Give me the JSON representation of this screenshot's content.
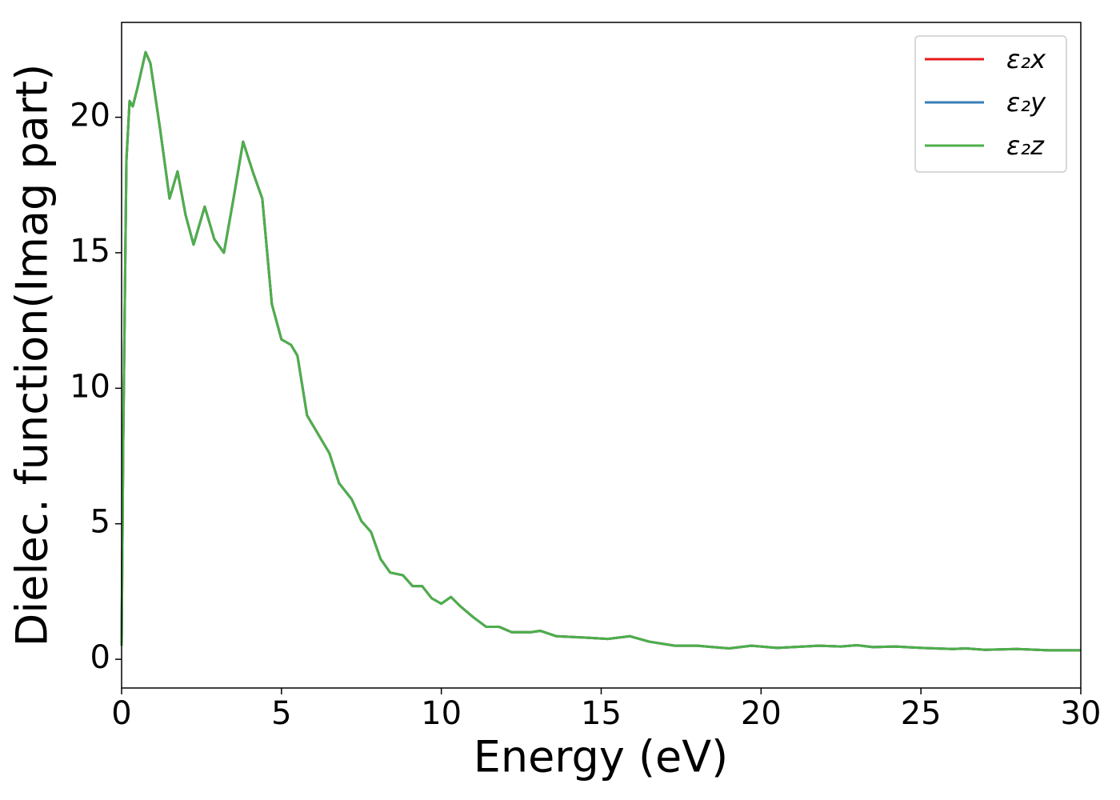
{
  "chart_data": {
    "type": "line",
    "xlabel": "Energy (eV)",
    "ylabel": "Dielec. function(Imag part)",
    "x": [
      0,
      0.05,
      0.15,
      0.25,
      0.35,
      0.5,
      0.75,
      0.9,
      1.2,
      1.5,
      1.75,
      2.0,
      2.25,
      2.6,
      2.9,
      3.2,
      3.5,
      3.8,
      4.1,
      4.4,
      4.7,
      5.0,
      5.3,
      5.5,
      5.8,
      6.1,
      6.5,
      6.8,
      7.2,
      7.5,
      7.8,
      8.1,
      8.4,
      8.8,
      9.1,
      9.4,
      9.7,
      10.0,
      10.3,
      10.6,
      11.0,
      11.4,
      11.8,
      12.2,
      12.8,
      13.1,
      13.6,
      14.5,
      15.2,
      15.9,
      16.5,
      17.3,
      18.0,
      19.0,
      19.7,
      20.5,
      21.8,
      22.5,
      23.0,
      23.5,
      24.2,
      25.0,
      26.0,
      26.4,
      27.0,
      28.0,
      29.0,
      30.0
    ],
    "series": [
      {
        "name": "ε₂x",
        "color": "#e41a1c",
        "values": [
          0.5,
          8,
          18.4,
          20.6,
          20.4,
          21.1,
          22.4,
          22.0,
          19.6,
          17.0,
          18.0,
          16.4,
          15.3,
          16.7,
          15.5,
          15.0,
          17.0,
          19.1,
          18.0,
          17.0,
          13.1,
          11.8,
          11.6,
          11.2,
          9.0,
          8.4,
          7.6,
          6.5,
          5.9,
          5.1,
          4.7,
          3.7,
          3.2,
          3.1,
          2.7,
          2.7,
          2.25,
          2.05,
          2.3,
          1.95,
          1.55,
          1.2,
          1.2,
          1.0,
          1.0,
          1.05,
          0.85,
          0.8,
          0.75,
          0.85,
          0.65,
          0.5,
          0.5,
          0.4,
          0.5,
          0.42,
          0.5,
          0.47,
          0.52,
          0.45,
          0.47,
          0.42,
          0.38,
          0.4,
          0.35,
          0.38,
          0.33,
          0.33
        ]
      },
      {
        "name": "ε₂y",
        "color": "#377eb8",
        "values": [
          0.5,
          8,
          18.4,
          20.6,
          20.4,
          21.1,
          22.4,
          22.0,
          19.6,
          17.0,
          18.0,
          16.4,
          15.3,
          16.7,
          15.5,
          15.0,
          17.0,
          19.1,
          18.0,
          17.0,
          13.1,
          11.8,
          11.6,
          11.2,
          9.0,
          8.4,
          7.6,
          6.5,
          5.9,
          5.1,
          4.7,
          3.7,
          3.2,
          3.1,
          2.7,
          2.7,
          2.25,
          2.05,
          2.3,
          1.95,
          1.55,
          1.2,
          1.2,
          1.0,
          1.0,
          1.05,
          0.85,
          0.8,
          0.75,
          0.85,
          0.65,
          0.5,
          0.5,
          0.4,
          0.5,
          0.42,
          0.5,
          0.47,
          0.52,
          0.45,
          0.47,
          0.42,
          0.38,
          0.4,
          0.35,
          0.38,
          0.33,
          0.33
        ]
      },
      {
        "name": "ε₂z",
        "color": "#4daf4a",
        "values": [
          0.5,
          8,
          18.4,
          20.6,
          20.4,
          21.1,
          22.4,
          22.0,
          19.6,
          17.0,
          18.0,
          16.4,
          15.3,
          16.7,
          15.5,
          15.0,
          17.0,
          19.1,
          18.0,
          17.0,
          13.1,
          11.8,
          11.6,
          11.2,
          9.0,
          8.4,
          7.6,
          6.5,
          5.9,
          5.1,
          4.7,
          3.7,
          3.2,
          3.1,
          2.7,
          2.7,
          2.25,
          2.05,
          2.3,
          1.95,
          1.55,
          1.2,
          1.2,
          1.0,
          1.0,
          1.05,
          0.85,
          0.8,
          0.75,
          0.85,
          0.65,
          0.5,
          0.5,
          0.4,
          0.5,
          0.42,
          0.5,
          0.47,
          0.52,
          0.45,
          0.47,
          0.42,
          0.38,
          0.4,
          0.35,
          0.38,
          0.33,
          0.33
        ]
      }
    ],
    "xlim": [
      0,
      30
    ],
    "xticks": [
      0,
      5,
      10,
      15,
      20,
      25,
      30
    ],
    "ylim": [
      -1.06,
      23.5
    ],
    "yticks": [
      0,
      5,
      10,
      15,
      20
    ],
    "grid": false,
    "legend": "upper right"
  }
}
